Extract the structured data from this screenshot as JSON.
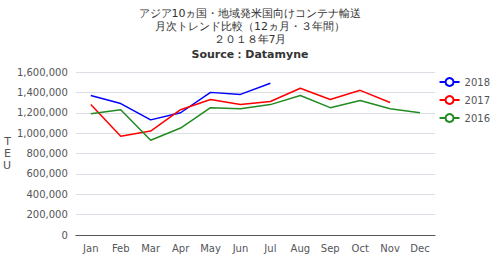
{
  "chart_data": {
    "type": "line",
    "title": "アジア10ヵ国・地域発米国向けコンテナ輸送\n月次トレンド比較（12ヵ月・３年間）\n２０１８年7月",
    "subtitle": "Source：Datamyne",
    "y_label": "T\nE\nU",
    "categories": [
      "Jan",
      "Feb",
      "Mar",
      "Apr",
      "May",
      "Jun",
      "Jul",
      "Aug",
      "Sep",
      "Oct",
      "Nov",
      "Dec"
    ],
    "series": [
      {
        "name": "2018",
        "color": "#0000FF",
        "values": [
          1370000,
          1290000,
          1130000,
          1200000,
          1400000,
          1380000,
          1490000,
          null,
          null,
          null,
          null,
          null
        ]
      },
      {
        "name": "2017",
        "color": "#FF0000",
        "values": [
          1280000,
          970000,
          1020000,
          1230000,
          1330000,
          1280000,
          1310000,
          1440000,
          1330000,
          1420000,
          1300000,
          null
        ]
      },
      {
        "name": "2016",
        "color": "#228B22",
        "values": [
          1190000,
          1230000,
          930000,
          1050000,
          1250000,
          1240000,
          1280000,
          1370000,
          1250000,
          1320000,
          1240000,
          1200000
        ]
      }
    ],
    "ylim": [
      0,
      1600000
    ],
    "yticks": [
      0,
      {
        "value": 200000,
        "label": "200,000"
      },
      {
        "value": 400000,
        "label": "400,000"
      },
      {
        "value": 600000,
        "label": "600,000"
      },
      {
        "value": 800000,
        "label": "800,000"
      },
      {
        "value": 1000000,
        "label": "1,000,000"
      },
      {
        "value": 1200000,
        "label": "1,200,000"
      },
      {
        "value": 1400000,
        "label": "1,400,000"
      },
      {
        "value": 1600000,
        "label": "1,600,000"
      }
    ],
    "grid": true,
    "legend": "upper right"
  }
}
